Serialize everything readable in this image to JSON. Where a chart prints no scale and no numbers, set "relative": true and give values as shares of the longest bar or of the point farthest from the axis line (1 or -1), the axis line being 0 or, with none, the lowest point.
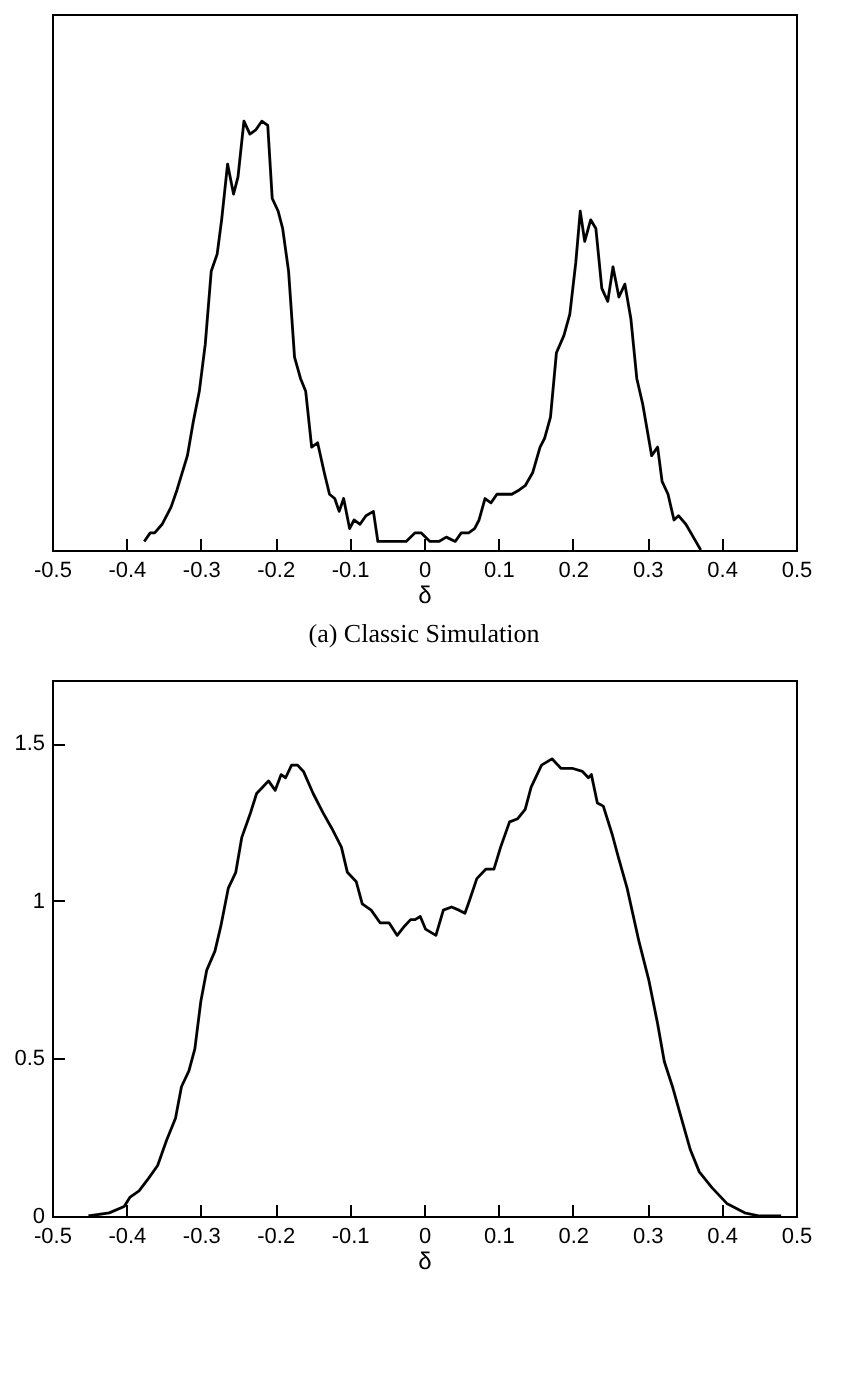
{
  "chart_data": [
    {
      "type": "line",
      "xlabel": "δ",
      "relative": true,
      "tick_labels": "x",
      "annotations": [
        "(a) Classic Simulation"
      ],
      "xlim": [
        -0.5,
        0.5
      ],
      "xticks": [
        -0.5,
        -0.4,
        -0.3,
        -0.2,
        -0.1,
        0,
        0.1,
        0.2,
        0.3,
        0.4,
        0.5
      ],
      "series": [
        {
          "color": "#000000",
          "x": [
            -0.376,
            -0.368,
            -0.362,
            -0.352,
            -0.34,
            -0.332,
            -0.318,
            -0.31,
            -0.302,
            -0.294,
            -0.286,
            -0.278,
            -0.272,
            -0.264,
            -0.256,
            -0.25,
            -0.242,
            -0.234,
            -0.226,
            -0.218,
            -0.21,
            -0.204,
            -0.196,
            -0.19,
            -0.182,
            -0.174,
            -0.166,
            -0.159,
            -0.151,
            -0.143,
            -0.134,
            -0.127,
            -0.12,
            -0.114,
            -0.108,
            -0.1,
            -0.094,
            -0.086,
            -0.078,
            -0.068,
            -0.062,
            -0.044,
            -0.024,
            -0.012,
            -0.004,
            0.008,
            0.02,
            0.03,
            0.042,
            0.05,
            0.06,
            0.068,
            0.074,
            0.082,
            0.09,
            0.098,
            0.108,
            0.118,
            0.128,
            0.136,
            0.146,
            0.156,
            0.162,
            0.17,
            0.178,
            0.188,
            0.196,
            0.204,
            0.21,
            0.216,
            0.224,
            0.231,
            0.239,
            0.247,
            0.254,
            0.262,
            0.27,
            0.278,
            0.286,
            0.294,
            0.306,
            0.314,
            0.32,
            0.328,
            0.336,
            0.342,
            0.352,
            0.362,
            0.372
          ],
          "values": [
            0.02,
            0.04,
            0.04,
            0.06,
            0.1,
            0.14,
            0.22,
            0.3,
            0.37,
            0.48,
            0.65,
            0.69,
            0.77,
            0.9,
            0.83,
            0.87,
            1,
            0.97,
            0.98,
            1,
            0.99,
            0.82,
            0.79,
            0.75,
            0.65,
            0.45,
            0.4,
            0.37,
            0.24,
            0.25,
            0.18,
            0.13,
            0.12,
            0.09,
            0.12,
            0.05,
            0.07,
            0.06,
            0.08,
            0.09,
            0.02,
            0.02,
            0.02,
            0.04,
            0.04,
            0.02,
            0.02,
            0.03,
            0.02,
            0.04,
            0.04,
            0.05,
            0.07,
            0.12,
            0.11,
            0.13,
            0.13,
            0.13,
            0.14,
            0.15,
            0.18,
            0.24,
            0.26,
            0.31,
            0.46,
            0.5,
            0.55,
            0.67,
            0.79,
            0.72,
            0.77,
            0.75,
            0.61,
            0.58,
            0.66,
            0.59,
            0.62,
            0.54,
            0.4,
            0.34,
            0.22,
            0.24,
            0.16,
            0.13,
            0.07,
            0.08,
            0.06,
            0.03,
            0
          ]
        }
      ]
    },
    {
      "type": "line",
      "xlabel": "δ",
      "xlim": [
        -0.5,
        0.5
      ],
      "xticks": [
        -0.5,
        -0.4,
        -0.3,
        -0.2,
        -0.1,
        0,
        0.1,
        0.2,
        0.3,
        0.4,
        0.5
      ],
      "ylim": [
        0,
        1.7
      ],
      "yticks": [
        0,
        0.5,
        1,
        1.5
      ],
      "series": [
        {
          "color": "#000000",
          "x": [
            -0.451,
            -0.423,
            -0.403,
            -0.395,
            -0.383,
            -0.37,
            -0.358,
            -0.346,
            -0.334,
            -0.326,
            -0.316,
            -0.308,
            -0.3,
            -0.292,
            -0.281,
            -0.273,
            -0.263,
            -0.253,
            -0.245,
            -0.233,
            -0.225,
            -0.217,
            -0.209,
            -0.2,
            -0.192,
            -0.186,
            -0.178,
            -0.17,
            -0.162,
            -0.149,
            -0.136,
            -0.124,
            -0.111,
            -0.103,
            -0.091,
            -0.083,
            -0.071,
            -0.059,
            -0.047,
            -0.036,
            -0.026,
            -0.018,
            -0.012,
            -0.005,
            0.002,
            0.016,
            0.026,
            0.037,
            0.047,
            0.055,
            0.061,
            0.071,
            0.083,
            0.094,
            0.103,
            0.115,
            0.126,
            0.136,
            0.144,
            0.158,
            0.172,
            0.184,
            0.199,
            0.213,
            0.221,
            0.225,
            0.233,
            0.241,
            0.253,
            0.261,
            0.273,
            0.289,
            0.302,
            0.314,
            0.323,
            0.334,
            0.346,
            0.358,
            0.37,
            0.387,
            0.407,
            0.431,
            0.451,
            0.48
          ],
          "values": [
            0,
            0.01,
            0.03,
            0.06,
            0.08,
            0.12,
            0.16,
            0.24,
            0.31,
            0.41,
            0.46,
            0.53,
            0.68,
            0.78,
            0.84,
            0.92,
            1.04,
            1.09,
            1.2,
            1.28,
            1.34,
            1.36,
            1.38,
            1.35,
            1.4,
            1.39,
            1.43,
            1.43,
            1.41,
            1.34,
            1.28,
            1.23,
            1.17,
            1.09,
            1.06,
            0.99,
            0.97,
            0.93,
            0.93,
            0.89,
            0.92,
            0.94,
            0.94,
            0.95,
            0.91,
            0.89,
            0.97,
            0.98,
            0.97,
            0.96,
            1,
            1.07,
            1.1,
            1.1,
            1.17,
            1.25,
            1.26,
            1.29,
            1.36,
            1.43,
            1.45,
            1.42,
            1.42,
            1.41,
            1.39,
            1.4,
            1.31,
            1.3,
            1.21,
            1.14,
            1.04,
            0.87,
            0.75,
            0.61,
            0.49,
            0.41,
            0.31,
            0.21,
            0.14,
            0.09,
            0.04,
            0.01,
            0,
            0
          ]
        }
      ]
    }
  ]
}
